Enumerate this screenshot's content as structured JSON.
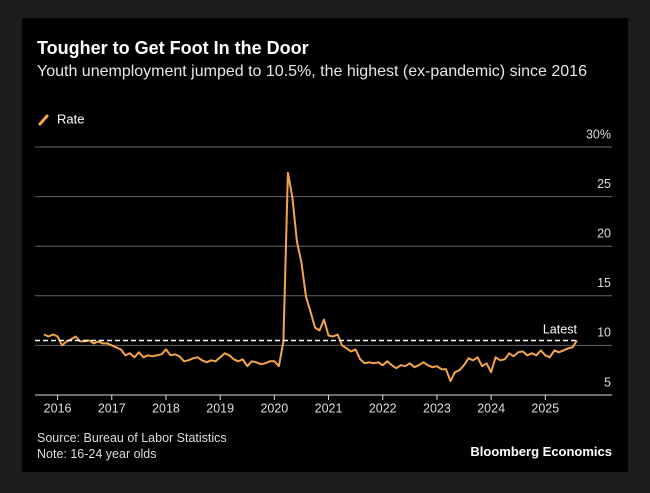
{
  "chart_data": {
    "type": "line",
    "title": "Tougher to Get Foot In the Door",
    "subtitle": "Youth unemployment jumped to 10.5%, the highest (ex-pandemic) since 2016",
    "source": "Source: Bureau of Labor Statistics",
    "note": "Note: 16-24 year olds",
    "brand": "Bloomberg Economics",
    "x": [
      "2015-10",
      "2015-11",
      "2015-12",
      "2016-01",
      "2016-02",
      "2016-03",
      "2016-04",
      "2016-05",
      "2016-06",
      "2016-07",
      "2016-08",
      "2016-09",
      "2016-10",
      "2016-11",
      "2016-12",
      "2017-01",
      "2017-02",
      "2017-03",
      "2017-04",
      "2017-05",
      "2017-06",
      "2017-07",
      "2017-08",
      "2017-09",
      "2017-10",
      "2017-11",
      "2017-12",
      "2018-01",
      "2018-02",
      "2018-03",
      "2018-04",
      "2018-05",
      "2018-06",
      "2018-07",
      "2018-08",
      "2018-09",
      "2018-10",
      "2018-11",
      "2018-12",
      "2019-01",
      "2019-02",
      "2019-03",
      "2019-04",
      "2019-05",
      "2019-06",
      "2019-07",
      "2019-08",
      "2019-09",
      "2019-10",
      "2019-11",
      "2019-12",
      "2020-01",
      "2020-02",
      "2020-03",
      "2020-04",
      "2020-05",
      "2020-06",
      "2020-07",
      "2020-08",
      "2020-09",
      "2020-10",
      "2020-11",
      "2020-12",
      "2021-01",
      "2021-02",
      "2021-03",
      "2021-04",
      "2021-05",
      "2021-06",
      "2021-07",
      "2021-08",
      "2021-09",
      "2021-10",
      "2021-11",
      "2021-12",
      "2022-01",
      "2022-02",
      "2022-03",
      "2022-04",
      "2022-05",
      "2022-06",
      "2022-07",
      "2022-08",
      "2022-09",
      "2022-10",
      "2022-11",
      "2022-12",
      "2023-01",
      "2023-02",
      "2023-03",
      "2023-04",
      "2023-05",
      "2023-06",
      "2023-07",
      "2023-08",
      "2023-09",
      "2023-10",
      "2023-11",
      "2023-12",
      "2024-01",
      "2024-02",
      "2024-03",
      "2024-04",
      "2024-05",
      "2024-06",
      "2024-07",
      "2024-08",
      "2024-09",
      "2024-10",
      "2024-11",
      "2024-12",
      "2025-01",
      "2025-02",
      "2025-03",
      "2025-04",
      "2025-05",
      "2025-06",
      "2025-07",
      "2025-08"
    ],
    "series": [
      {
        "name": "Rate",
        "color": "#f4a54a",
        "values": [
          11.1,
          10.9,
          11.1,
          10.9,
          10.0,
          10.4,
          10.6,
          10.9,
          10.4,
          10.4,
          10.5,
          10.2,
          10.4,
          10.2,
          10.2,
          10.0,
          9.8,
          9.6,
          9.0,
          9.2,
          8.8,
          9.3,
          8.8,
          9.0,
          8.9,
          9.0,
          9.1,
          9.6,
          9.0,
          9.1,
          8.9,
          8.4,
          8.5,
          8.7,
          8.8,
          8.5,
          8.3,
          8.5,
          8.4,
          8.8,
          9.2,
          9.0,
          8.6,
          8.4,
          8.6,
          7.9,
          8.4,
          8.3,
          8.1,
          8.2,
          8.4,
          8.4,
          7.9,
          10.4,
          27.4,
          24.9,
          20.5,
          18.3,
          14.9,
          13.4,
          11.8,
          11.5,
          12.6,
          11.0,
          10.9,
          11.1,
          10.0,
          9.7,
          9.4,
          9.6,
          8.6,
          8.2,
          8.3,
          8.2,
          8.3,
          8.0,
          8.4,
          8.0,
          7.7,
          8.0,
          7.9,
          8.2,
          7.8,
          8.0,
          8.3,
          8.0,
          7.8,
          7.9,
          7.6,
          7.6,
          6.4,
          7.3,
          7.5,
          8.0,
          8.7,
          8.5,
          8.8,
          7.9,
          8.2,
          7.3,
          8.8,
          8.5,
          8.6,
          9.2,
          8.9,
          9.3,
          9.4,
          9.0,
          9.2,
          9.0,
          9.5,
          9.0,
          8.8,
          9.5,
          9.3,
          9.5,
          9.7,
          9.8,
          10.5
        ]
      }
    ],
    "reference_line": {
      "label": "Latest",
      "value": 10.5
    },
    "xlim": [
      "2015-08",
      "2025-12"
    ],
    "xticks": [
      {
        "value": "2016-01",
        "label": "2016"
      },
      {
        "value": "2017-01",
        "label": "2017"
      },
      {
        "value": "2018-01",
        "label": "2018"
      },
      {
        "value": "2019-01",
        "label": "2019"
      },
      {
        "value": "2020-01",
        "label": "2020"
      },
      {
        "value": "2021-01",
        "label": "2021"
      },
      {
        "value": "2022-01",
        "label": "2022"
      },
      {
        "value": "2023-01",
        "label": "2023"
      },
      {
        "value": "2024-01",
        "label": "2024"
      },
      {
        "value": "2025-01",
        "label": "2025"
      }
    ],
    "ylim": [
      5,
      30
    ],
    "yticks": [
      5,
      10,
      15,
      20,
      25,
      {
        "value": 30,
        "label": "30%"
      }
    ],
    "grid": true
  }
}
